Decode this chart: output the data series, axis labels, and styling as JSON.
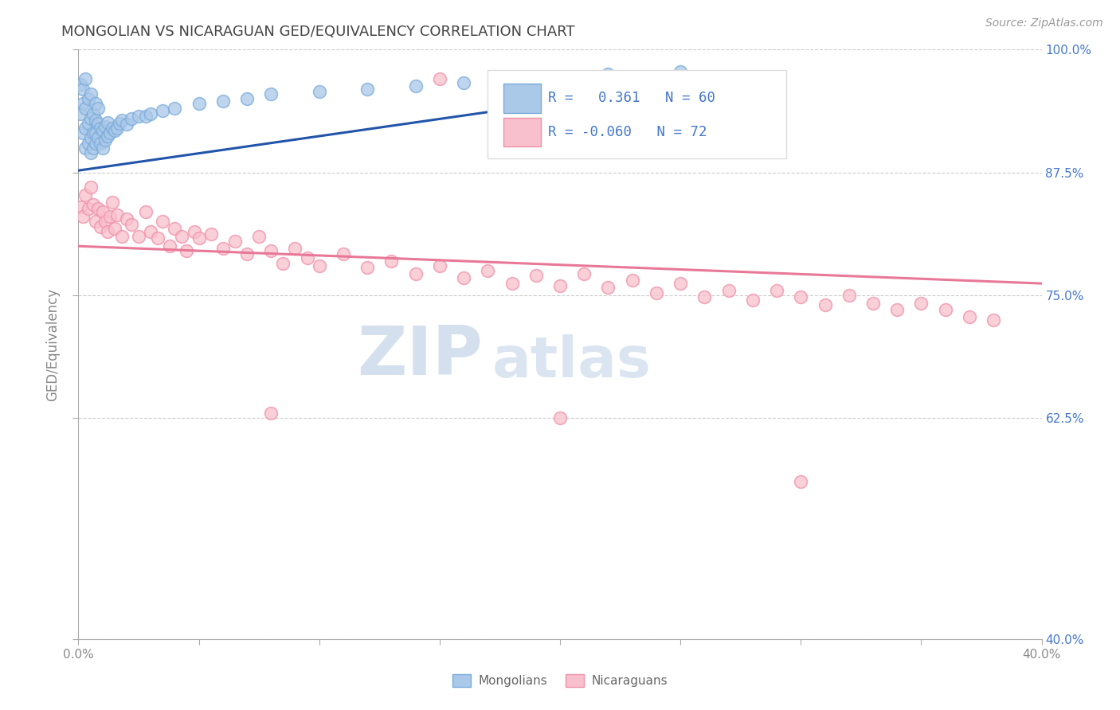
{
  "title": "MONGOLIAN VS NICARAGUAN GED/EQUIVALENCY CORRELATION CHART",
  "source": "Source: ZipAtlas.com",
  "ylabel": "GED/Equivalency",
  "xlabel_mongolians": "Mongolians",
  "xlabel_nicaraguans": "Nicaraguans",
  "watermark_zip": "ZIP",
  "watermark_atlas": "atlas",
  "xmin": 0.0,
  "xmax": 0.4,
  "ymin": 0.4,
  "ymax": 1.0,
  "yticks": [
    0.4,
    0.625,
    0.75,
    0.875,
    1.0
  ],
  "ytick_labels": [
    "40.0%",
    "62.5%",
    "75.0%",
    "87.5%",
    "100.0%"
  ],
  "xtick_positions": [
    0.0,
    0.05,
    0.1,
    0.15,
    0.2,
    0.25,
    0.3,
    0.35,
    0.4
  ],
  "xtick_labels": [
    "0.0%",
    "",
    "",
    "",
    "",
    "",
    "",
    "",
    "40.0%"
  ],
  "legend_R_mongolian": "0.361",
  "legend_N_mongolian": "60",
  "legend_R_nicaraguan": "-0.060",
  "legend_N_nicaraguan": "72",
  "color_mongolian_face": "#aac8e8",
  "color_mongolian_edge": "#7aacdc",
  "color_nicaraguan_face": "#f8c0cc",
  "color_nicaraguan_edge": "#f090a8",
  "color_trendline_mongolian": "#2255aa",
  "color_trendline_nicaraguan": "#e87898",
  "color_axis": "#aaaaaa",
  "color_grid": "#cccccc",
  "color_title": "#444444",
  "color_right_labels": "#4477cc",
  "color_source": "#999999",
  "color_ylabel": "#888888",
  "color_xtick": "#888888"
}
